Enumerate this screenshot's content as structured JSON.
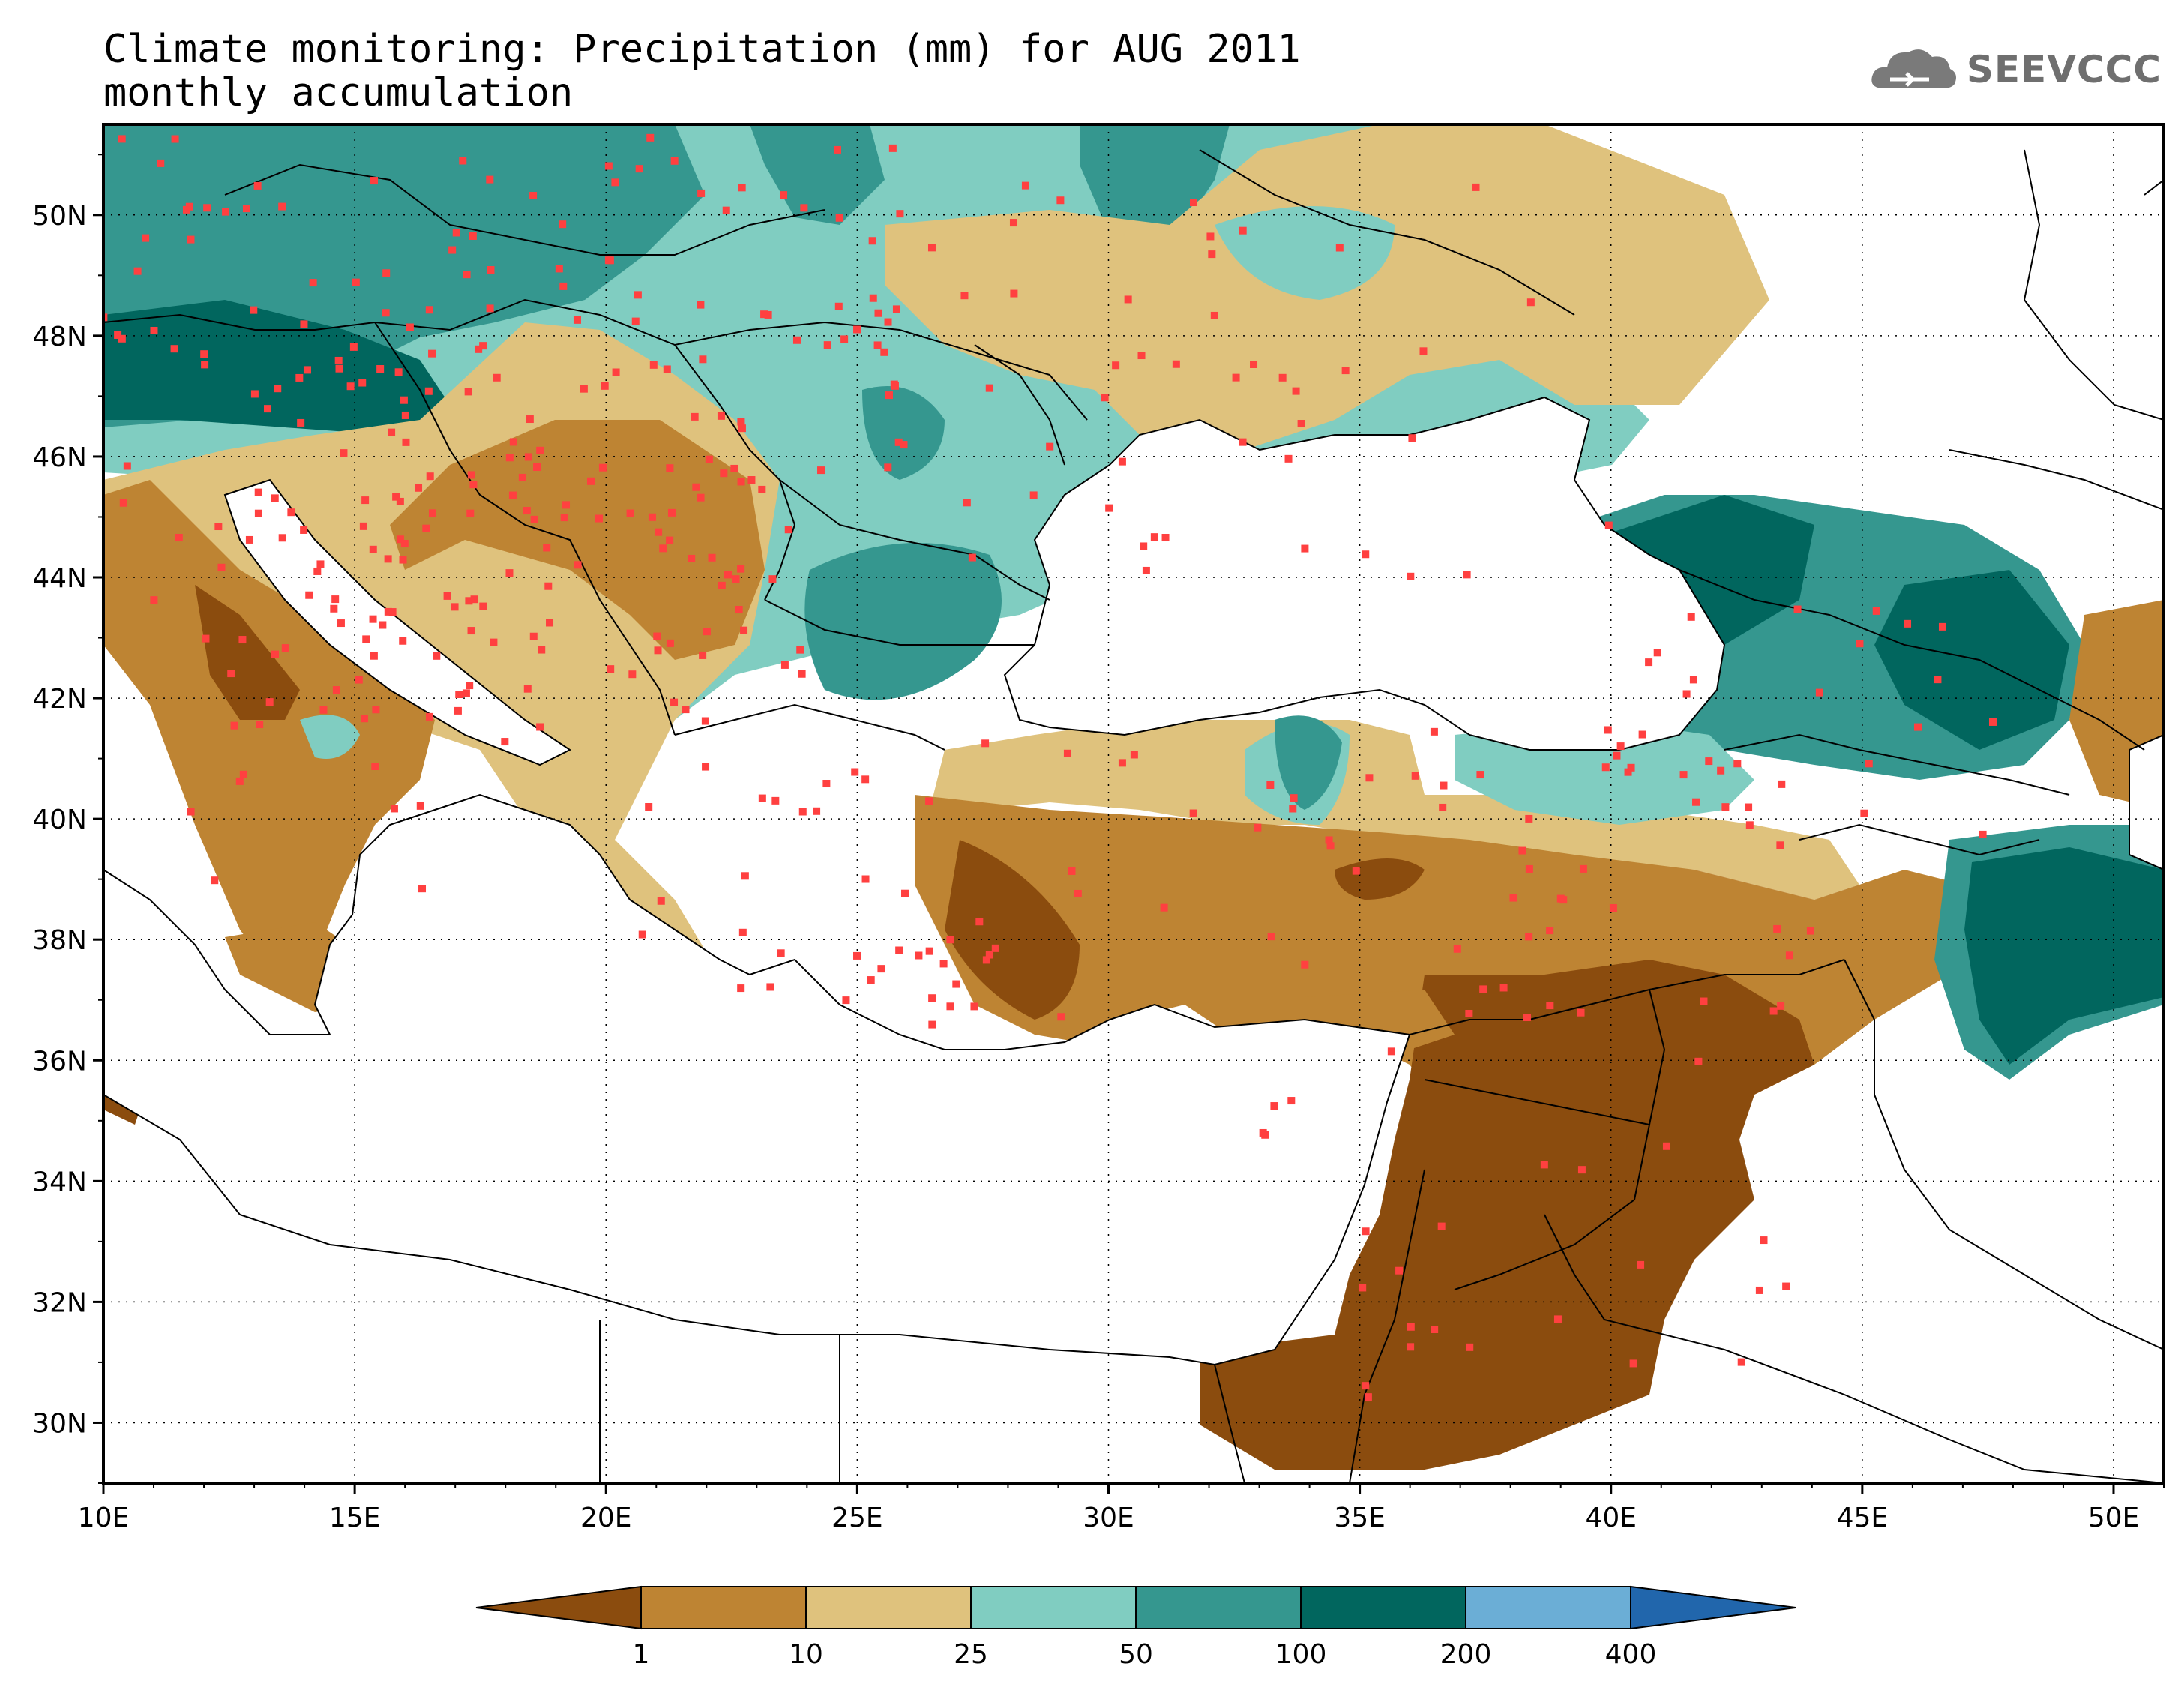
{
  "title": {
    "line1": "Climate monitoring: Precipitation (mm) for AUG 2011",
    "line2": "monthly accumulation"
  },
  "logo": {
    "text": "SEEVCCC",
    "icon": "cloud-icon"
  },
  "map": {
    "lon_range": [
      10,
      51
    ],
    "lat_range": [
      29,
      51.5
    ],
    "lat_ticks": [
      "30N",
      "32N",
      "34N",
      "36N",
      "38N",
      "40N",
      "42N",
      "44N",
      "46N",
      "48N",
      "50N"
    ],
    "lon_ticks": [
      "10E",
      "15E",
      "20E",
      "25E",
      "30E",
      "35E",
      "40E",
      "45E",
      "50E"
    ],
    "grid": "dotted",
    "station_color": "#ff4040"
  },
  "legend": {
    "breaks": [
      "1",
      "10",
      "25",
      "50",
      "100",
      "200",
      "400"
    ],
    "colors": [
      "#8b4c0e",
      "#be8433",
      "#dfc27d",
      "#80cdc1",
      "#35978f",
      "#01665e",
      "#6baed6",
      "#2166ac"
    ]
  }
}
